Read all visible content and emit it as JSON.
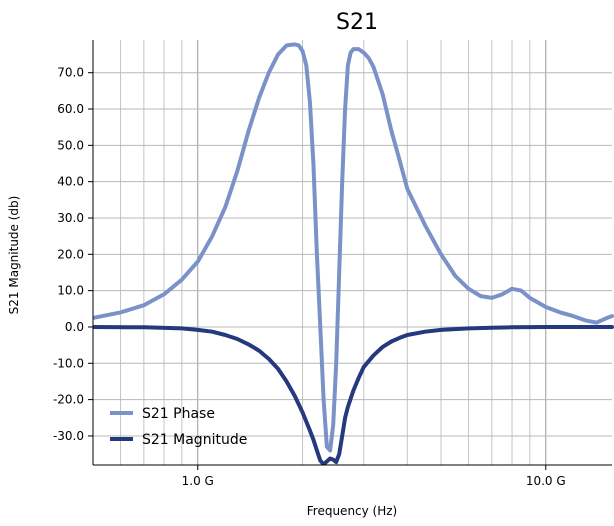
{
  "chart_data": {
    "type": "line",
    "title": "S21",
    "xlabel": "Frequency (Hz)",
    "ylabel": "S21 Magnitude (db)",
    "xscale": "log",
    "xlim": [
      500000000,
      15500000000
    ],
    "ylim": [
      -38,
      79
    ],
    "grid": true,
    "legend_position": "bottom-left",
    "x_ticks": [
      {
        "value": 1000000000,
        "label": "1.0 G"
      },
      {
        "value": 10000000000,
        "label": "10.0 G"
      }
    ],
    "y_ticks": [
      {
        "value": 70,
        "label": "70.0"
      },
      {
        "value": 60,
        "label": "60.0"
      },
      {
        "value": 50,
        "label": "50.0"
      },
      {
        "value": 40,
        "label": "40.0"
      },
      {
        "value": 30,
        "label": "30.0"
      },
      {
        "value": 20,
        "label": "20.0"
      },
      {
        "value": 10,
        "label": "10.0"
      },
      {
        "value": 0,
        "label": "0.0"
      },
      {
        "value": -10,
        "label": "-10.0"
      },
      {
        "value": -20,
        "label": "-20.0"
      },
      {
        "value": -30,
        "label": "-30.0"
      }
    ],
    "series": [
      {
        "name": "S21 Phase",
        "color": "#7b92c8",
        "x": [
          500000000,
          600000000,
          700000000,
          800000000,
          900000000,
          1000000000,
          1100000000,
          1200000000,
          1300000000,
          1400000000,
          1500000000,
          1600000000,
          1700000000,
          1800000000,
          1900000000,
          1950000000,
          2000000000,
          2050000000,
          2100000000,
          2150000000,
          2200000000,
          2250000000,
          2300000000,
          2350000000,
          2400000000,
          2450000000,
          2500000000,
          2550000000,
          2600000000,
          2650000000,
          2700000000,
          2750000000,
          2800000000,
          2900000000,
          3000000000,
          3100000000,
          3200000000,
          3400000000,
          3600000000,
          3800000000,
          4000000000,
          4500000000,
          5000000000,
          5500000000,
          6000000000,
          6500000000,
          7000000000,
          7500000000,
          8000000000,
          8500000000,
          9000000000,
          10000000000,
          11000000000,
          12000000000,
          13000000000,
          14000000000,
          15000000000,
          15500000000
        ],
        "y": [
          2.5,
          4,
          6,
          9,
          13,
          18,
          25,
          33,
          43,
          54,
          63,
          70,
          75,
          77.5,
          77.8,
          77.5,
          76,
          72,
          62,
          45,
          20,
          0,
          -20,
          -33,
          -34,
          -27,
          -10,
          15,
          40,
          60,
          72,
          75.5,
          76.5,
          76.5,
          75.5,
          74,
          71.5,
          64,
          54,
          46,
          38,
          28,
          20,
          14,
          10.5,
          8.5,
          8,
          9,
          10.5,
          10,
          8,
          5.5,
          4,
          3,
          1.8,
          1.2,
          2.5,
          3
        ]
      },
      {
        "name": "S21 Magnitude",
        "color": "#24397e",
        "x": [
          500000000,
          700000000,
          900000000,
          1000000000,
          1100000000,
          1200000000,
          1300000000,
          1400000000,
          1500000000,
          1600000000,
          1700000000,
          1800000000,
          1900000000,
          2000000000,
          2100000000,
          2150000000,
          2200000000,
          2250000000,
          2300000000,
          2350000000,
          2400000000,
          2450000000,
          2500000000,
          2550000000,
          2600000000,
          2650000000,
          2700000000,
          2800000000,
          2900000000,
          3000000000,
          3200000000,
          3400000000,
          3600000000,
          3800000000,
          4000000000,
          4500000000,
          5000000000,
          6000000000,
          7000000000,
          8000000000,
          10000000000,
          12000000000,
          15500000000
        ],
        "y": [
          0,
          -0.1,
          -0.4,
          -0.8,
          -1.3,
          -2.2,
          -3.3,
          -4.8,
          -6.5,
          -8.8,
          -11.5,
          -15,
          -19,
          -23.5,
          -28.5,
          -31,
          -34,
          -36.8,
          -37.8,
          -37,
          -36.2,
          -36.5,
          -37.2,
          -35,
          -30,
          -25,
          -22,
          -17.5,
          -14,
          -11,
          -7.8,
          -5.5,
          -4,
          -3,
          -2.2,
          -1.3,
          -0.8,
          -0.4,
          -0.2,
          -0.1,
          0,
          0,
          0
        ]
      }
    ]
  }
}
